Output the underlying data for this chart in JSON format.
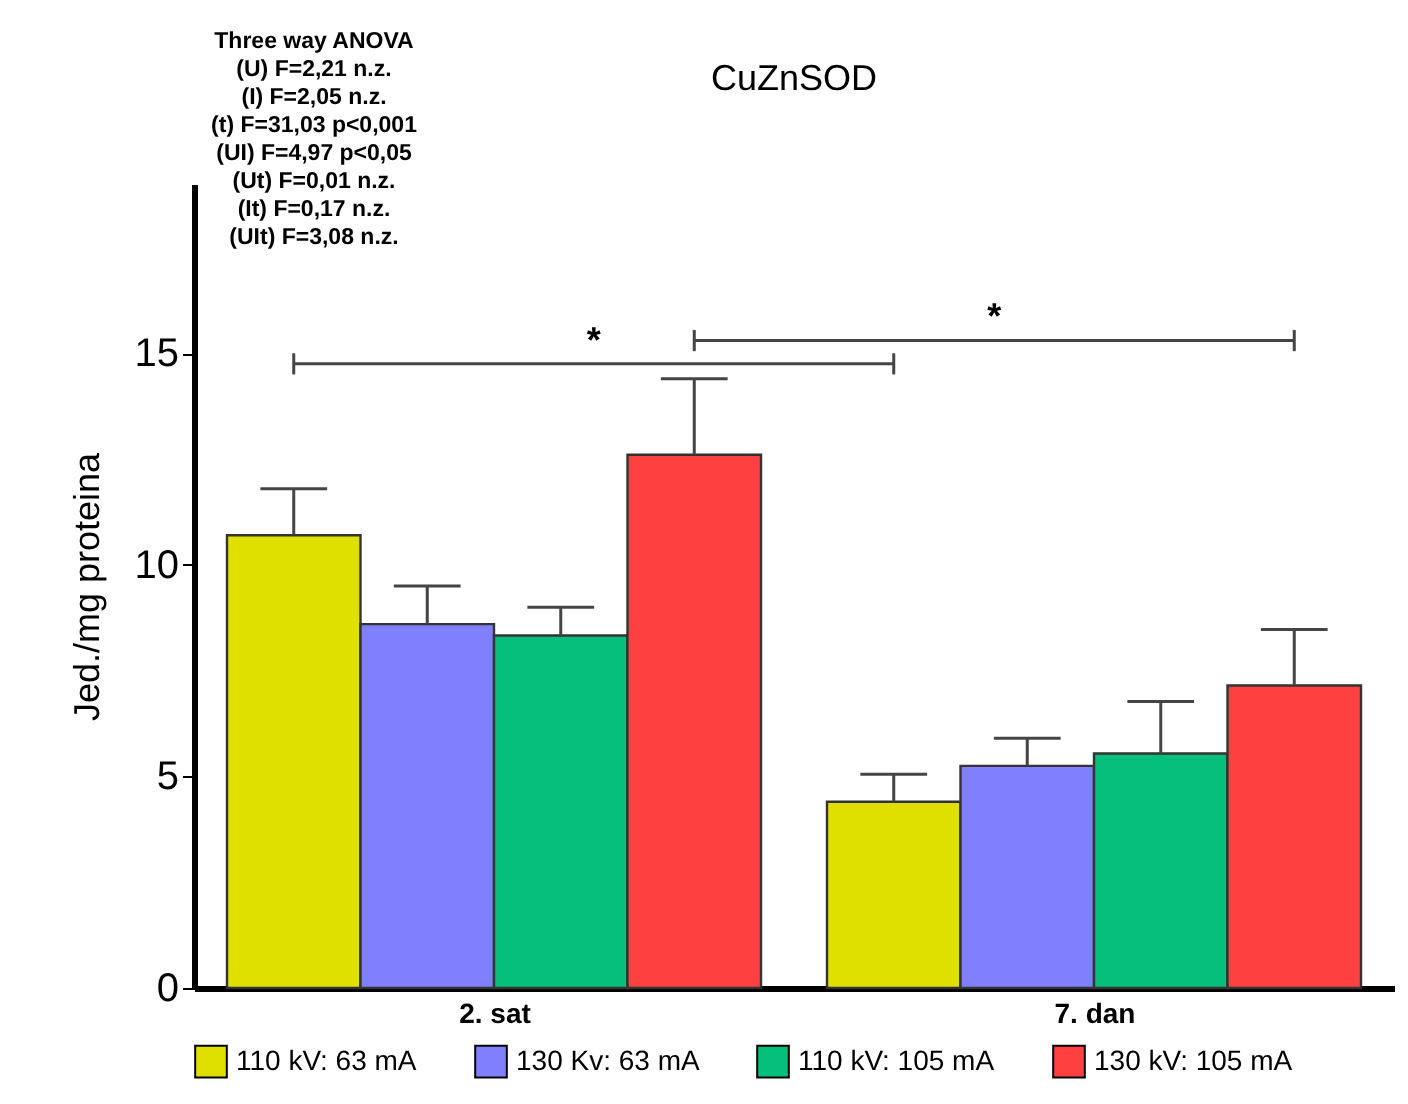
{
  "chart_data": {
    "type": "bar",
    "title": "CuZnSOD",
    "ylabel": "Jed./mg proteina",
    "categories": [
      "2. sat",
      "7. dan"
    ],
    "series": [
      {
        "name": "110 kV: 63 mA",
        "color": "#dfdf00",
        "values": [
          10.7,
          4.4
        ],
        "errors": [
          [
            10.7,
            11.8
          ],
          [
            4.4,
            5.05
          ]
        ]
      },
      {
        "name": "130 Kv: 63 mA",
        "color": "#8080ff",
        "values": [
          8.6,
          5.25
        ],
        "errors": [
          [
            8.6,
            9.5
          ],
          [
            5.25,
            5.9
          ]
        ]
      },
      {
        "name": "110 kV: 105 mA",
        "color": "#06bf7a",
        "values": [
          8.33,
          5.54
        ],
        "errors": [
          [
            8.33,
            9.0
          ],
          [
            5.54,
            6.77
          ]
        ]
      },
      {
        "name": "130 kV: 105 mA",
        "color": "#ff4040",
        "values": [
          12.6,
          7.15
        ],
        "errors": [
          [
            12.6,
            14.4
          ],
          [
            7.15,
            8.47
          ]
        ]
      }
    ],
    "ylim": [
      0,
      19
    ],
    "yticks": [
      0,
      5,
      10,
      15
    ],
    "grid": false,
    "legend": "bottom",
    "annotations": [
      "Three way ANOVA\n(U) F=2,21 n.z.\n(I) F=2,05 n.z.\n(t) F=31,03 p<0,001\n(UI) F=4,97 p<0,05\n(Ut) F=0,01 n.z.\n(It) F=0,17 n.z.\n(UIt) F=3,08 n.z.",
      "*",
      "*"
    ]
  }
}
